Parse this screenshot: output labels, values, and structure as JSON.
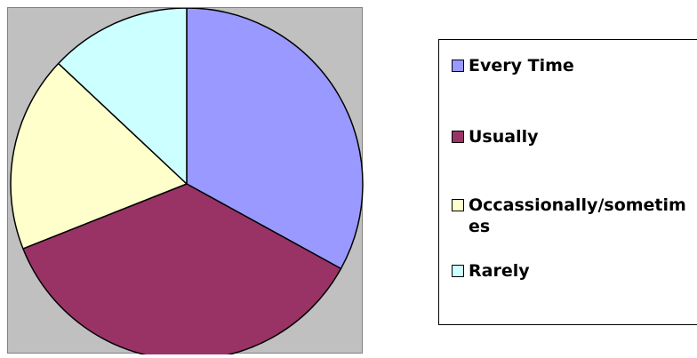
{
  "chart_data": {
    "type": "pie",
    "title": "",
    "start_angle_deg": 0,
    "direction": "clockwise",
    "slices": [
      {
        "label": "Every Time",
        "value": 33,
        "color": "#9999ff"
      },
      {
        "label": "Usually",
        "value": 36,
        "color": "#993366"
      },
      {
        "label": "Occassionally/sometimes",
        "value": 18,
        "color": "#ffffcc"
      },
      {
        "label": "Rarely",
        "value": 13,
        "color": "#ccffff"
      }
    ],
    "legend_position": "right",
    "plot_background": "#c0c0c0",
    "legend": [
      {
        "label": "Every Time",
        "color": "#9999ff"
      },
      {
        "label": "Usually",
        "color": "#993366"
      },
      {
        "label": "Occassionally/sometimes",
        "color": "#ffffcc"
      },
      {
        "label": "Rarely",
        "color": "#ccffff"
      }
    ]
  }
}
